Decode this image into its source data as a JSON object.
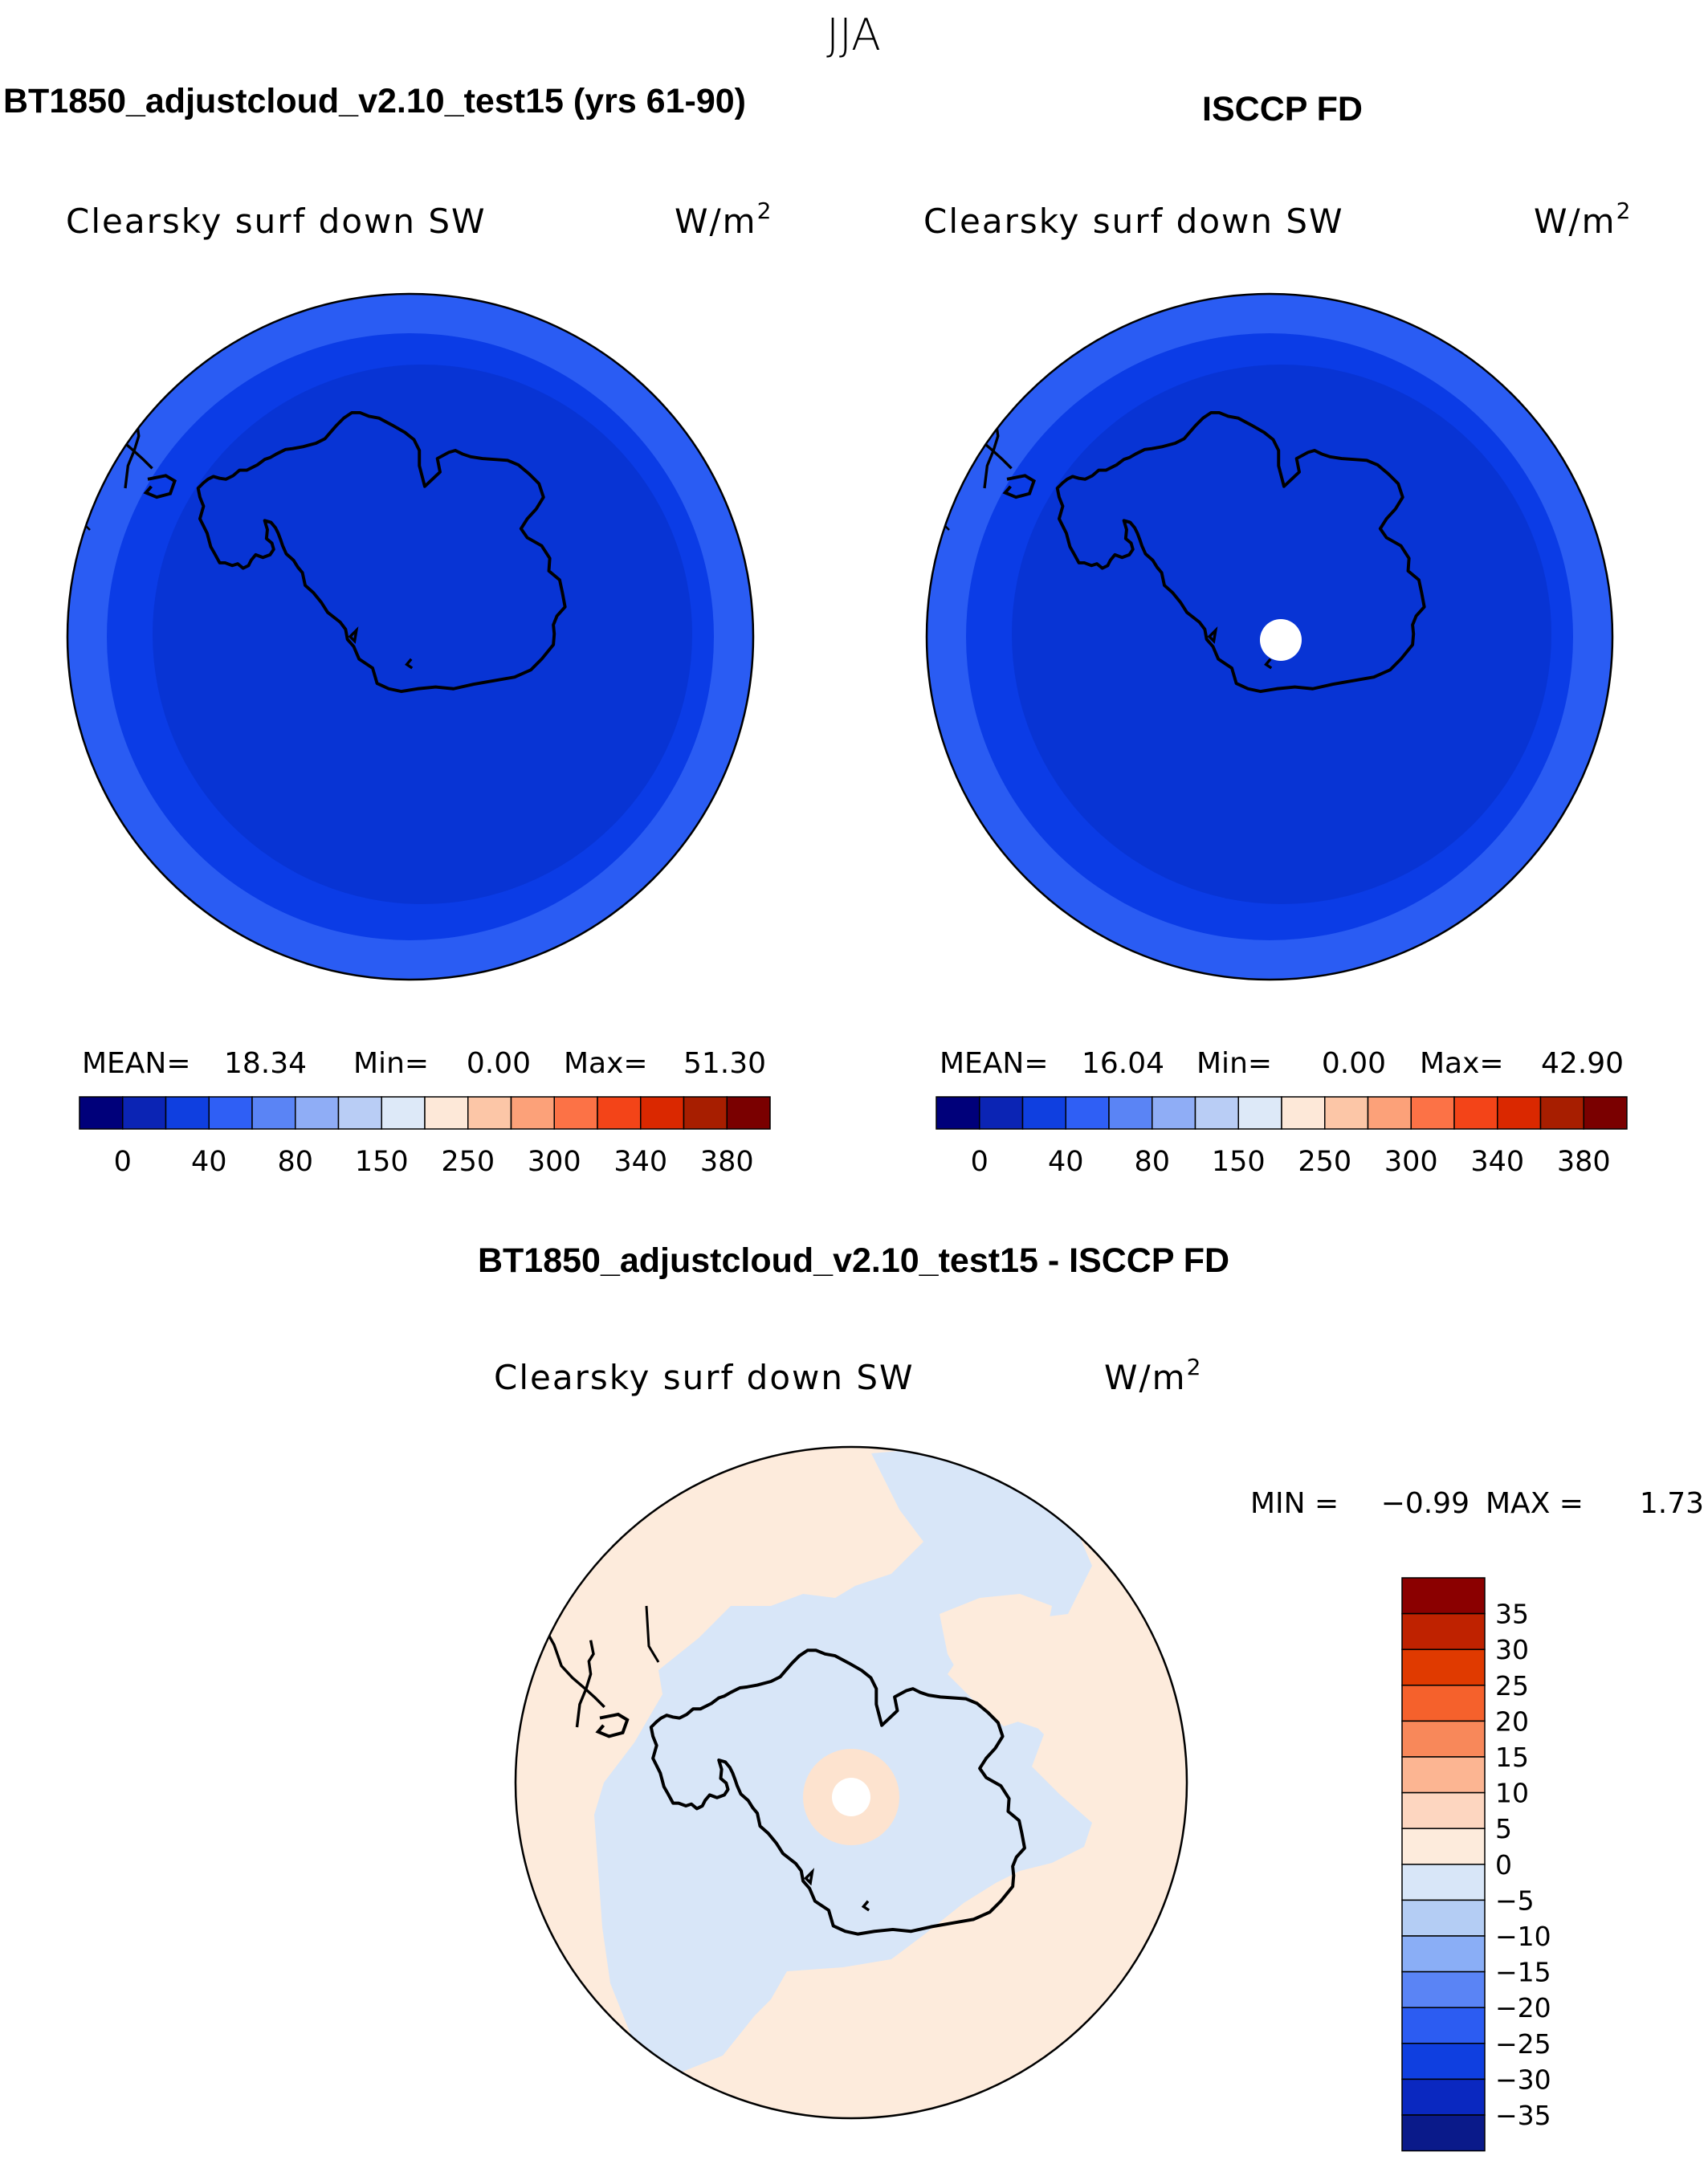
{
  "figure": {
    "season_title": "JJA",
    "units": "W/m",
    "units_exponent": "2"
  },
  "panels": [
    {
      "title": "BT1850_adjustcloud_v2.10_test15 (yrs 61-90)",
      "subtitle": "Clearsky surf down SW",
      "stats": {
        "mean_label": "MEAN=",
        "mean": "18.34",
        "min_label": "Min=",
        "min": "0.00",
        "max_label": "Max=",
        "max": "51.30"
      }
    },
    {
      "title": "ISCCP FD",
      "subtitle": "Clearsky surf down SW",
      "stats": {
        "mean_label": "MEAN=",
        "mean": "16.04",
        "min_label": "Min=",
        "min": "0.00",
        "max_label": "Max=",
        "max": "42.90"
      }
    },
    {
      "title": "BT1850_adjustcloud_v2.10_test15 - ISCCP FD",
      "subtitle": "Clearsky surf down SW",
      "stats": {
        "min_label": "MIN =",
        "min": "−0.99",
        "max_label": "MAX =",
        "max": "1.73"
      }
    }
  ],
  "chart_data": [
    {
      "type": "heatmap",
      "projection": "south polar stereographic",
      "title": "BT1850_adjustcloud_v2.10_test15 (yrs 61-90)",
      "variable": "Clearsky surf down SW",
      "units": "W/m2",
      "stats": {
        "mean": 18.34,
        "min": 0.0,
        "max": 51.3
      },
      "colorbar": {
        "tick_labels": [
          "0",
          "40",
          "80",
          "150",
          "250",
          "300",
          "340",
          "380"
        ],
        "colors": [
          "#00007a",
          "#0b24b4",
          "#0f3fe0",
          "#2f5ff5",
          "#5a84f5",
          "#8fadf6",
          "#b9cdf5",
          "#dde9f8",
          "#fde8d8",
          "#fcc6a7",
          "#fca179",
          "#fc7246",
          "#f34418",
          "#da2800",
          "#a71e00",
          "#7a0000"
        ]
      },
      "fields": [
        {
          "region": "outer ring",
          "color": "#2a5cf3"
        },
        {
          "region": "middle ring",
          "color": "#0b3ce6"
        },
        {
          "region": "inner disk (Antarctic interior)",
          "color": "#0834d4"
        }
      ]
    },
    {
      "type": "heatmap",
      "projection": "south polar stereographic",
      "title": "ISCCP FD",
      "variable": "Clearsky surf down SW",
      "units": "W/m2",
      "stats": {
        "mean": 16.04,
        "min": 0.0,
        "max": 42.9
      },
      "colorbar": {
        "tick_labels": [
          "0",
          "40",
          "80",
          "150",
          "250",
          "300",
          "340",
          "380"
        ],
        "colors": [
          "#00007a",
          "#0b24b4",
          "#0f3fe0",
          "#2f5ff5",
          "#5a84f5",
          "#8fadf6",
          "#b9cdf5",
          "#dde9f8",
          "#fde8d8",
          "#fcc6a7",
          "#fca179",
          "#fc7246",
          "#f34418",
          "#da2800",
          "#a71e00",
          "#7a0000"
        ]
      },
      "fields": [
        {
          "region": "outer ring",
          "color": "#2a5cf3"
        },
        {
          "region": "middle ring",
          "color": "#0b3ce6"
        },
        {
          "region": "inner disk (Antarctic interior)",
          "color": "#0834d4"
        },
        {
          "region": "pole (missing data)",
          "color": "#ffffff"
        }
      ]
    },
    {
      "type": "heatmap",
      "projection": "south polar stereographic",
      "title": "BT1850_adjustcloud_v2.10_test15 - ISCCP FD",
      "variable": "Clearsky surf down SW",
      "units": "W/m2",
      "stats": {
        "min": -0.99,
        "max": 1.73
      },
      "colorbar": {
        "orientation": "vertical",
        "tick_labels": [
          "35",
          "30",
          "25",
          "20",
          "15",
          "10",
          "5",
          "0",
          "−5",
          "−10",
          "−15",
          "−20",
          "−25",
          "−30",
          "−35"
        ],
        "colors": [
          "#8b0000",
          "#bf2200",
          "#e03a00",
          "#f5612c",
          "#f8885a",
          "#fcb592",
          "#fdd6c0",
          "#fdebdc",
          "#d8e6f8",
          "#b4cdf4",
          "#8aaef6",
          "#5a84f5",
          "#2c5cf2",
          "#0f3fe0",
          "#0a28c0",
          "#0a1a8a"
        ]
      },
      "fields": [
        {
          "region": "background",
          "range": "0 to 5",
          "color": "#fdebdc"
        },
        {
          "region": "Antarctic interior and Weddell/Ross sectors",
          "range": "-5 to 0",
          "color": "#d8e6f8"
        },
        {
          "region": "pole (missing data)",
          "color": "#ffffff"
        }
      ]
    }
  ]
}
